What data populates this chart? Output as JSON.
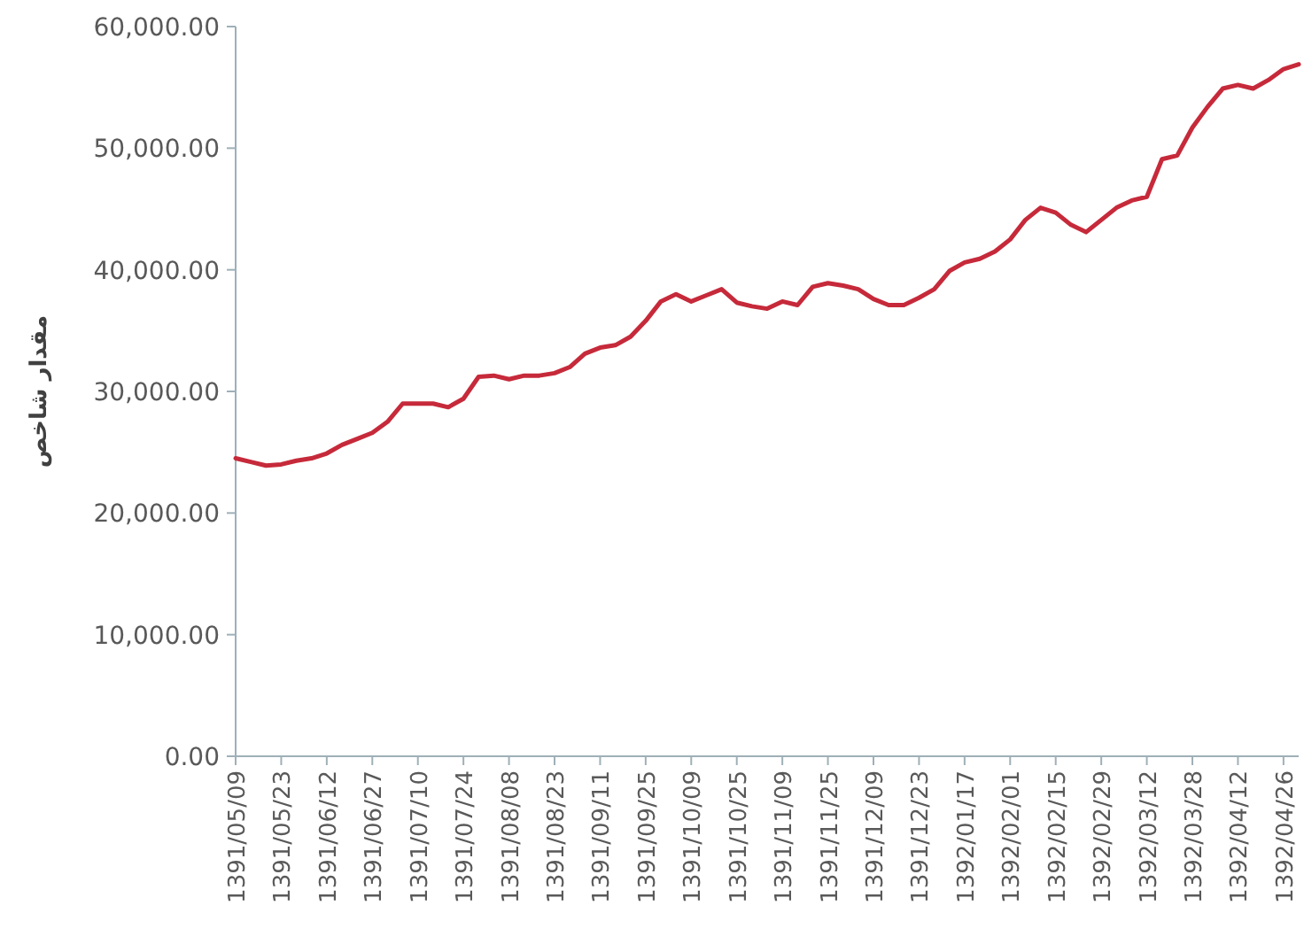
{
  "chart_data": {
    "type": "line",
    "ylabel": "مقدار شاخص",
    "categories": [
      "1391/05/09",
      null,
      null,
      "1391/05/23",
      null,
      null,
      "1391/06/12",
      null,
      null,
      "1391/06/27",
      null,
      null,
      "1391/07/10",
      null,
      null,
      "1391/07/24",
      null,
      null,
      "1391/08/08",
      null,
      null,
      "1391/08/23",
      null,
      null,
      "1391/09/11",
      null,
      null,
      "1391/09/25",
      null,
      null,
      "1391/10/09",
      null,
      null,
      "1391/10/25",
      null,
      null,
      "1391/11/09",
      null,
      null,
      "1391/11/25",
      null,
      null,
      "1391/12/09",
      null,
      null,
      "1391/12/23",
      null,
      null,
      "1392/01/17",
      null,
      null,
      "1392/02/01",
      null,
      null,
      "1392/02/15",
      null,
      null,
      "1392/02/29",
      null,
      null,
      "1392/03/12",
      null,
      null,
      "1392/03/28",
      null,
      null,
      "1392/04/12",
      null,
      null,
      "1392/04/26",
      null
    ],
    "series": [
      {
        "color": "#c62a3a",
        "values": [
          24500,
          24200,
          23900,
          24000,
          24300,
          24500,
          24900,
          25600,
          26100,
          26600,
          27500,
          29000,
          29000,
          29000,
          28700,
          29400,
          31200,
          31300,
          31000,
          31300,
          31300,
          31500,
          32000,
          33100,
          33600,
          33800,
          34500,
          35800,
          37400,
          38000,
          37400,
          37900,
          38400,
          37300,
          37000,
          36800,
          37400,
          37100,
          38600,
          38900,
          38700,
          38400,
          37600,
          37100,
          37100,
          37700,
          38400,
          39900,
          40600,
          40900,
          41500,
          42500,
          44100,
          45100,
          44700,
          43700,
          43100,
          44100,
          45100,
          45700,
          46000,
          49100,
          49400,
          51700,
          53400,
          54900,
          55200,
          54900,
          55600,
          56500,
          56900
        ]
      }
    ],
    "ylim": [
      0,
      60000
    ],
    "yticks": [
      {
        "value": 0,
        "label": "0.00"
      },
      {
        "value": 10000,
        "label": "10,000.00"
      },
      {
        "value": 20000,
        "label": "20,000.00"
      },
      {
        "value": 30000,
        "label": "30,000.00"
      },
      {
        "value": 40000,
        "label": "40,000.00"
      },
      {
        "value": 50000,
        "label": "50,000.00"
      },
      {
        "value": 60000,
        "label": "60,000.00"
      }
    ],
    "line_style": "solid"
  }
}
